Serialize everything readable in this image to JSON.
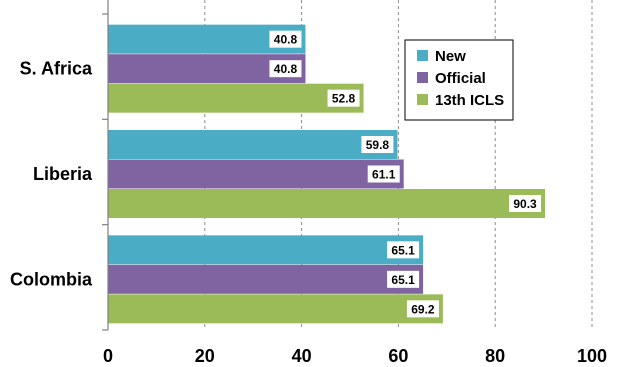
{
  "chart_data": {
    "type": "bar",
    "orientation": "horizontal",
    "categories": [
      "S. Africa",
      "Liberia",
      "Colombia"
    ],
    "series": [
      {
        "name": "New",
        "color": "#4bacc6",
        "values": [
          40.8,
          59.8,
          65.1
        ]
      },
      {
        "name": "Official",
        "color": "#8064a2",
        "values": [
          40.8,
          61.1,
          65.1
        ]
      },
      {
        "name": "13th ICLS",
        "color": "#9bbb59",
        "values": [
          52.8,
          90.3,
          69.2
        ]
      }
    ],
    "xlim": [
      0,
      100
    ],
    "xticks": [
      0,
      20,
      40,
      60,
      80,
      100
    ],
    "data_labels": true,
    "grid": "vertical-dashed",
    "legend_position": "top-right"
  }
}
